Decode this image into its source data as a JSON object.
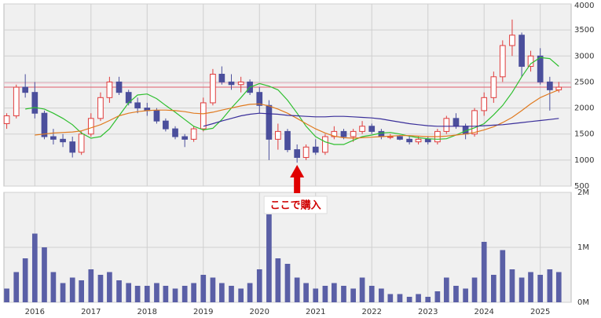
{
  "chart_data": {
    "type": "candlestick",
    "x": [
      2015.5,
      2015.67,
      2015.83,
      2016.0,
      2016.17,
      2016.33,
      2016.5,
      2016.67,
      2016.83,
      2017.0,
      2017.17,
      2017.33,
      2017.5,
      2017.67,
      2017.83,
      2018.0,
      2018.17,
      2018.33,
      2018.5,
      2018.67,
      2018.83,
      2019.0,
      2019.17,
      2019.33,
      2019.5,
      2019.67,
      2019.83,
      2020.0,
      2020.17,
      2020.33,
      2020.5,
      2020.67,
      2020.83,
      2021.0,
      2021.17,
      2021.33,
      2021.5,
      2021.67,
      2021.83,
      2022.0,
      2022.17,
      2022.33,
      2022.5,
      2022.67,
      2022.83,
      2023.0,
      2023.17,
      2023.33,
      2023.5,
      2023.67,
      2023.83,
      2024.0,
      2024.17,
      2024.33,
      2024.5,
      2024.67,
      2024.83,
      2025.0,
      2025.17,
      2025.33
    ],
    "open": [
      1700,
      1850,
      2400,
      2300,
      1900,
      1450,
      1400,
      1350,
      1150,
      1500,
      1800,
      2200,
      2500,
      2300,
      2100,
      2000,
      1950,
      1750,
      1600,
      1450,
      1400,
      1600,
      2100,
      2650,
      2500,
      2450,
      2500,
      2300,
      2050,
      1400,
      1550,
      1200,
      1050,
      1250,
      1150,
      1450,
      1550,
      1450,
      1550,
      1650,
      1550,
      1450,
      1450,
      1400,
      1350,
      1400,
      1350,
      1550,
      1800,
      1650,
      1500,
      1950,
      2200,
      2600,
      3200,
      3400,
      2800,
      3000,
      2500,
      2350
    ],
    "high": [
      1900,
      2450,
      2650,
      2500,
      1950,
      1600,
      1500,
      1450,
      1550,
      1900,
      2300,
      2600,
      2600,
      2350,
      2200,
      2100,
      2000,
      1800,
      1650,
      1500,
      1650,
      2200,
      2750,
      2800,
      2650,
      2600,
      2550,
      2400,
      2150,
      1700,
      1600,
      1300,
      1300,
      1400,
      1500,
      1650,
      1600,
      1600,
      1750,
      1700,
      1600,
      1500,
      1480,
      1450,
      1450,
      1450,
      1600,
      1850,
      1900,
      1700,
      2000,
      2300,
      2700,
      3300,
      3700,
      3450,
      3100,
      3150,
      2600,
      2500
    ],
    "low": [
      1600,
      1800,
      2200,
      1800,
      1400,
      1300,
      1250,
      1050,
      1100,
      1450,
      1750,
      2100,
      2250,
      2050,
      1900,
      1850,
      1700,
      1550,
      1400,
      1250,
      1350,
      1550,
      2050,
      2450,
      2350,
      2300,
      2250,
      1900,
      1000,
      1200,
      1150,
      950,
      1000,
      1100,
      1100,
      1400,
      1400,
      1350,
      1500,
      1500,
      1400,
      1400,
      1380,
      1300,
      1300,
      1300,
      1300,
      1500,
      1600,
      1400,
      1450,
      1850,
      2100,
      2500,
      3000,
      2600,
      2700,
      2450,
      1950,
      2300
    ],
    "close": [
      1850,
      2400,
      2300,
      1900,
      1450,
      1400,
      1350,
      1150,
      1500,
      1800,
      2200,
      2500,
      2300,
      2100,
      2000,
      1950,
      1750,
      1600,
      1450,
      1400,
      1600,
      2100,
      2650,
      2500,
      2450,
      2500,
      2300,
      2050,
      1400,
      1550,
      1200,
      1050,
      1250,
      1150,
      1450,
      1550,
      1450,
      1550,
      1650,
      1550,
      1450,
      1450,
      1400,
      1350,
      1400,
      1350,
      1550,
      1800,
      1650,
      1500,
      1950,
      2200,
      2600,
      3200,
      3400,
      2800,
      3000,
      2500,
      2350,
      2400
    ],
    "colors": {
      "up": "#e03c3c",
      "down": "#4b4f9c"
    },
    "series": [
      {
        "color": "#2fbf2f",
        "values": [
          null,
          null,
          1980,
          2010,
          1980,
          1900,
          1800,
          1680,
          1520,
          1420,
          1450,
          1600,
          1850,
          2100,
          2250,
          2270,
          2180,
          2050,
          1920,
          1780,
          1650,
          1580,
          1610,
          1780,
          2000,
          2200,
          2400,
          2470,
          2420,
          2350,
          2150,
          1900,
          1650,
          1450,
          1350,
          1300,
          1300,
          1380,
          1450,
          1480,
          1520,
          1530,
          1500,
          1460,
          1430,
          1410,
          1400,
          1410,
          1480,
          1560,
          1620,
          1700,
          1870,
          2050,
          2300,
          2600,
          2850,
          2970,
          2950,
          2800
        ]
      },
      {
        "color": "#e07a1f",
        "values": [
          null,
          null,
          null,
          1480,
          1500,
          1520,
          1530,
          1540,
          1560,
          1620,
          1680,
          1760,
          1850,
          1900,
          1930,
          1950,
          1960,
          1960,
          1950,
          1930,
          1900,
          1890,
          1920,
          1960,
          2000,
          2040,
          2070,
          2080,
          2040,
          1980,
          1900,
          1800,
          1700,
          1600,
          1520,
          1460,
          1430,
          1420,
          1430,
          1440,
          1450,
          1460,
          1470,
          1470,
          1460,
          1450,
          1450,
          1460,
          1480,
          1500,
          1530,
          1580,
          1640,
          1720,
          1820,
          1950,
          2080,
          2200,
          2280,
          2350
        ]
      },
      {
        "color": "#3a2f9a",
        "values": [
          null,
          null,
          null,
          null,
          null,
          null,
          null,
          null,
          null,
          null,
          null,
          null,
          null,
          null,
          null,
          null,
          null,
          null,
          null,
          null,
          null,
          1650,
          1700,
          1750,
          1800,
          1850,
          1880,
          1900,
          1890,
          1880,
          1860,
          1850,
          1840,
          1830,
          1830,
          1840,
          1840,
          1830,
          1820,
          1810,
          1790,
          1760,
          1730,
          1700,
          1680,
          1660,
          1650,
          1650,
          1650,
          1650,
          1650,
          1660,
          1670,
          1680,
          1700,
          1720,
          1740,
          1760,
          1780,
          1800
        ]
      }
    ],
    "reference_lines": [
      {
        "value": 2400,
        "color": "#e05a6a"
      },
      {
        "value": 2480,
        "color": "#f0b0c0"
      }
    ],
    "xlim": [
      2015.45,
      2025.55
    ],
    "xticks": [
      {
        "value": 2016.0,
        "label": "2016"
      },
      {
        "value": 2017.0,
        "label": "2017"
      },
      {
        "value": 2018.0,
        "label": "2018"
      },
      {
        "value": 2019.0,
        "label": "2019"
      },
      {
        "value": 2020.0,
        "label": "2020"
      },
      {
        "value": 2021.0,
        "label": "2021"
      },
      {
        "value": 2022.0,
        "label": "2022"
      },
      {
        "value": 2023.0,
        "label": "2023"
      },
      {
        "value": 2024.0,
        "label": "2024"
      },
      {
        "value": 2025.0,
        "label": "2025"
      }
    ],
    "ylim": [
      500,
      4000
    ],
    "yticks": [
      500,
      1000,
      1500,
      2000,
      2500,
      3000,
      3500,
      4000
    ],
    "volume": {
      "color": "#5a5fa6",
      "ylim": [
        0,
        2000000
      ],
      "yticks": [
        {
          "value": 0,
          "label": "0M"
        },
        {
          "value": 1000000,
          "label": "1M"
        },
        {
          "value": 2000000,
          "label": "2M"
        }
      ],
      "values": [
        250000,
        550000,
        800000,
        1250000,
        1000000,
        550000,
        350000,
        450000,
        400000,
        600000,
        500000,
        550000,
        400000,
        350000,
        300000,
        300000,
        350000,
        300000,
        250000,
        300000,
        350000,
        500000,
        450000,
        350000,
        300000,
        250000,
        350000,
        600000,
        1600000,
        800000,
        700000,
        450000,
        350000,
        250000,
        300000,
        350000,
        300000,
        250000,
        450000,
        300000,
        250000,
        150000,
        150000,
        100000,
        150000,
        100000,
        200000,
        450000,
        300000,
        250000,
        450000,
        1100000,
        500000,
        950000,
        600000,
        450000,
        550000,
        500000,
        600000,
        550000
      ]
    },
    "annotation": {
      "text": "ここで購入",
      "x": 2020.67
    }
  }
}
